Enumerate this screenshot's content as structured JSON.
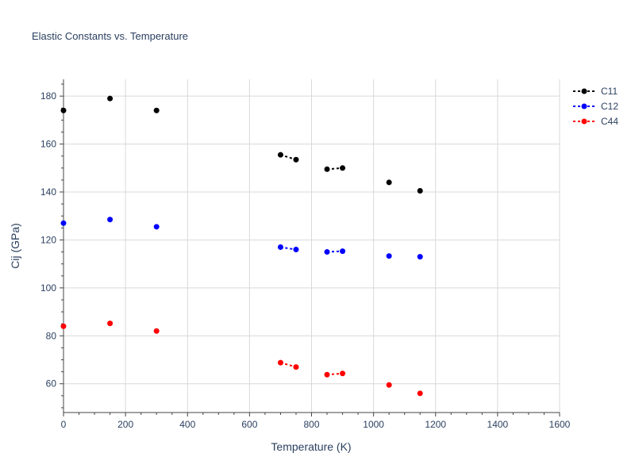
{
  "chart_data": {
    "type": "scatter",
    "title": "Elastic Constants vs. Temperature",
    "xlabel": "Temperature (K)",
    "ylabel": "Cij (GPa)",
    "xlim": [
      0,
      1600
    ],
    "ylim": [
      48,
      187
    ],
    "xticks": [
      0,
      200,
      400,
      600,
      800,
      1000,
      1200,
      1400,
      1600
    ],
    "yticks": [
      60,
      80,
      100,
      120,
      140,
      160,
      180
    ],
    "grid": true,
    "legend_position": "top-right",
    "series": [
      {
        "name": "C11",
        "color": "#000000",
        "x": [
          0,
          150,
          300,
          700,
          750,
          850,
          900,
          1050,
          1150
        ],
        "y": [
          174.0,
          179.0,
          174.0,
          155.5,
          153.5,
          149.5,
          150.0,
          144.0,
          140.5
        ],
        "line_segments": [
          [
            3,
            4
          ],
          [
            5,
            6
          ]
        ]
      },
      {
        "name": "C12",
        "color": "#0000ff",
        "x": [
          0,
          150,
          300,
          700,
          750,
          850,
          900,
          1050,
          1150
        ],
        "y": [
          127.0,
          128.5,
          125.5,
          117.0,
          116.0,
          115.0,
          115.3,
          113.3,
          113.0
        ],
        "line_segments": [
          [
            3,
            4
          ],
          [
            5,
            6
          ]
        ]
      },
      {
        "name": "C44",
        "color": "#ff0000",
        "x": [
          0,
          150,
          300,
          700,
          750,
          850,
          900,
          1050,
          1150
        ],
        "y": [
          84.0,
          85.2,
          82.0,
          68.8,
          67.0,
          63.8,
          64.3,
          59.5,
          56.0
        ],
        "line_segments": [
          [
            3,
            4
          ],
          [
            5,
            6
          ]
        ]
      }
    ]
  }
}
